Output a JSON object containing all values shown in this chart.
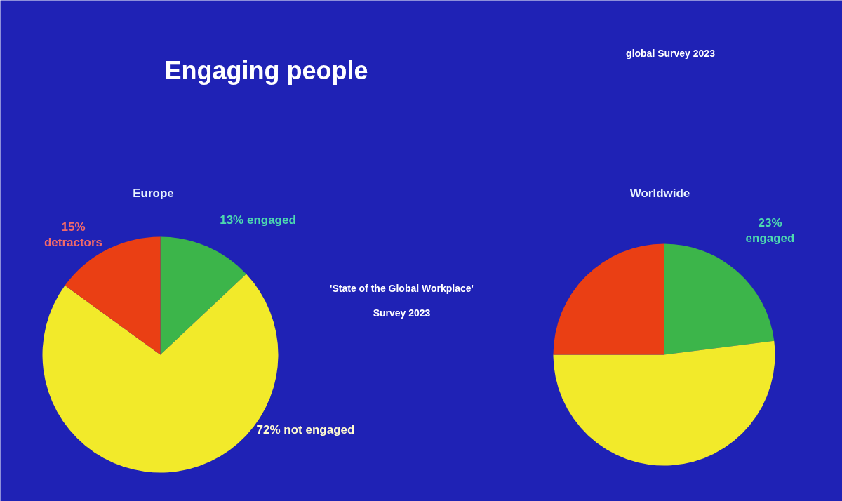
{
  "chart_data": [
    {
      "type": "pie",
      "title": "Europe",
      "categories": [
        "13% engaged",
        "72% not engaged",
        "15%\ndetractors"
      ],
      "values": [
        13,
        72,
        15
      ],
      "colors": [
        "#3cb54a",
        "#f2ea2a",
        "#ea3f14"
      ],
      "annotations": [
        "Engaging people",
        "global Survey 2023",
        "'State of the Global Workplace'",
        "Survey 2023"
      ]
    },
    {
      "type": "pie",
      "title": "Worldwide",
      "categories": [
        "23%\nengaged",
        null,
        null
      ],
      "values": [
        23,
        52,
        25
      ],
      "colors": [
        "#3cb54a",
        "#f2ea2a",
        "#ea3f14"
      ]
    }
  ]
}
